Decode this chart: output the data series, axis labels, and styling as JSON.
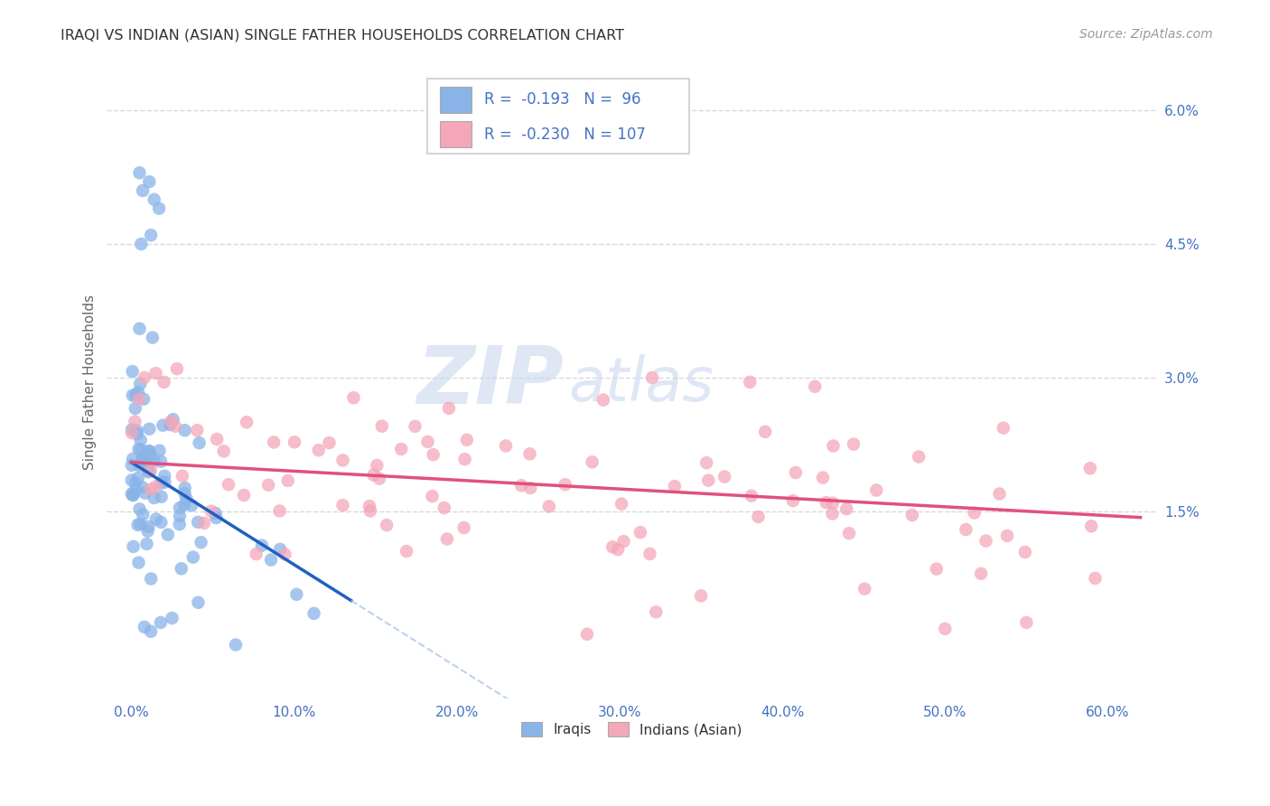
{
  "title": "IRAQI VS INDIAN (ASIAN) SINGLE FATHER HOUSEHOLDS CORRELATION CHART",
  "source_text": "Source: ZipAtlas.com",
  "ylabel": "Single Father Households",
  "x_ticks": [
    0.0,
    10.0,
    20.0,
    30.0,
    40.0,
    50.0,
    60.0
  ],
  "y_ticks_right": [
    0.0,
    1.5,
    3.0,
    4.5,
    6.0
  ],
  "y_tick_labels_right": [
    "",
    "1.5%",
    "3.0%",
    "4.5%",
    "6.0%"
  ],
  "xlim": [
    -1.5,
    63.0
  ],
  "ylim": [
    -0.6,
    6.5
  ],
  "iraqis_color": "#8ab4e8",
  "indians_color": "#f4a7b9",
  "trend_iraqi_color": "#2060c0",
  "trend_indian_color": "#e05080",
  "trend_iraqi_dash_color": "#a0c0e8",
  "legend_r_iraqi": "R =  -0.193",
  "legend_n_iraqi": "N =  96",
  "legend_r_indian": "R =  -0.230",
  "legend_n_indian": "N = 107",
  "watermark_zip": "ZIP",
  "watermark_atlas": "atlas",
  "grid_color": "#d8d8d8",
  "background_color": "#ffffff",
  "title_color": "#333333",
  "tick_color": "#4472c4",
  "axis_label_color": "#666666",
  "legend_text_r_color": "#4472c4",
  "legend_text_n_color": "#333333"
}
